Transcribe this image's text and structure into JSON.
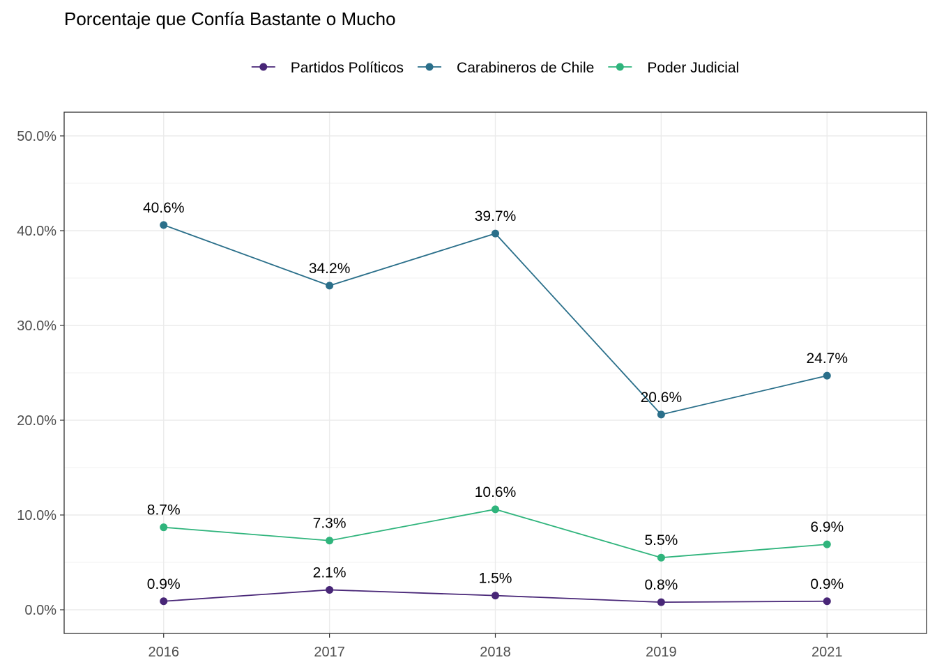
{
  "chart_data": {
    "type": "line",
    "title": "Porcentaje que Confía Bastante o Mucho",
    "xlabel": "",
    "ylabel": "",
    "categories": [
      "2016",
      "2017",
      "2018",
      "2019",
      "2021"
    ],
    "ylim": [
      -2.5,
      52.5
    ],
    "y_ticks": [
      0,
      10,
      20,
      30,
      40,
      50
    ],
    "y_tick_labels": [
      "0.0%",
      "10.0%",
      "20.0%",
      "30.0%",
      "40.0%",
      "50.0%"
    ],
    "grid": true,
    "legend_position": "top",
    "series": [
      {
        "name": "Partidos Políticos",
        "color": "#482677",
        "values": [
          0.9,
          2.1,
          1.5,
          0.8,
          0.9
        ],
        "labels": [
          "0.9%",
          "2.1%",
          "1.5%",
          "0.8%",
          "0.9%"
        ]
      },
      {
        "name": "Carabineros de Chile",
        "color": "#2A6F8A",
        "values": [
          40.6,
          34.2,
          39.7,
          20.6,
          24.7
        ],
        "labels": [
          "40.6%",
          "34.2%",
          "39.7%",
          "20.6%",
          "24.7%"
        ]
      },
      {
        "name": "Poder Judicial",
        "color": "#2FB47C",
        "values": [
          8.7,
          7.3,
          10.6,
          5.5,
          6.9
        ],
        "labels": [
          "8.7%",
          "7.3%",
          "10.6%",
          "5.5%",
          "6.9%"
        ]
      }
    ]
  }
}
